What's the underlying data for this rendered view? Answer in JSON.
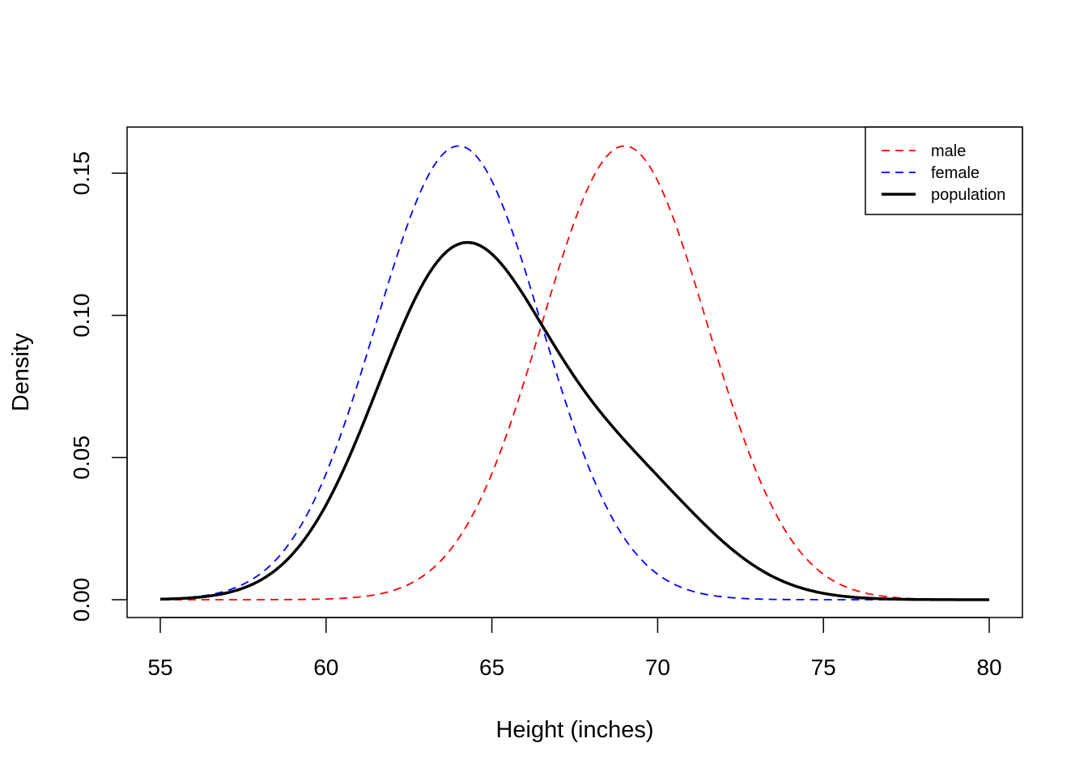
{
  "chart_data": {
    "type": "line",
    "title": "",
    "xlabel": "Height (inches)",
    "ylabel": "Density",
    "xlim": [
      55,
      80
    ],
    "ylim": [
      0,
      0.16
    ],
    "xticks": [
      55,
      60,
      65,
      70,
      75,
      80
    ],
    "xtick_labels": [
      "55",
      "60",
      "65",
      "70",
      "75",
      "80"
    ],
    "yticks": [
      0,
      0.05,
      0.1,
      0.15
    ],
    "ytick_labels": [
      "0.00",
      "0.05",
      "0.10",
      "0.15"
    ],
    "grid": false,
    "legend_position": "top-right",
    "series": [
      {
        "name": "male",
        "color": "#ff0000",
        "dash": "dashed",
        "distribution": "normal",
        "mean": 69,
        "sd": 2.5
      },
      {
        "name": "female",
        "color": "#0000ff",
        "dash": "dashed",
        "distribution": "normal",
        "mean": 64,
        "sd": 2.5
      },
      {
        "name": "population",
        "color": "#000000",
        "dash": "solid",
        "distribution": "mixture",
        "components": [
          {
            "mean": 69,
            "sd": 2.5,
            "weight": 0.25
          },
          {
            "mean": 64,
            "sd": 2.5,
            "weight": 0.75
          }
        ]
      }
    ]
  }
}
